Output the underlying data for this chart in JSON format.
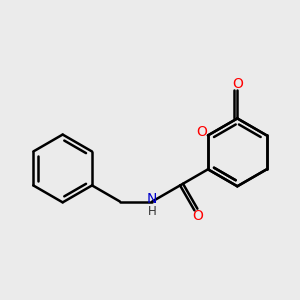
{
  "background_color": "#ebebeb",
  "bond_color": "#000000",
  "bond_width": 1.8,
  "atom_colors": {
    "O": "#ff0000",
    "N": "#0000cc",
    "C": "#000000",
    "H": "#333333"
  },
  "font_size": 10,
  "fig_size": [
    3.0,
    3.0
  ],
  "dpi": 100
}
